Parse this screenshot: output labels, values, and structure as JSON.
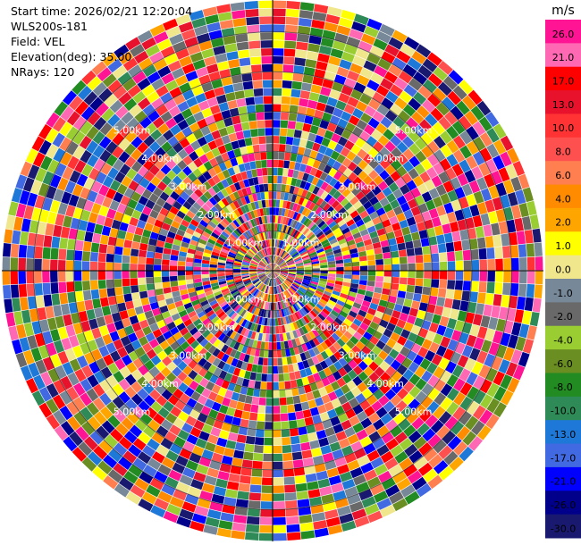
{
  "info": {
    "start_time": "Start time: 2026/02/21 12:20:04",
    "instrument": "WLS200s-181",
    "field": "Field: VEL",
    "elevation": "Elevation(deg): 35.00",
    "nrays": "NRays: 120"
  },
  "chart_data": {
    "type": "heatmap",
    "projection": "polar-ppi",
    "field": "VEL",
    "units": "m/s",
    "n_rays": 120,
    "elevation_deg": 35.0,
    "range_rings_km": [
      1.0,
      2.0,
      3.0,
      4.0,
      5.0
    ],
    "ring_labels": [
      "1.00km",
      "2.00km",
      "3.00km",
      "4.00km",
      "5.00km"
    ],
    "max_range_km": 6.8,
    "colorbar": {
      "label": "m/s",
      "ticks": [
        "26.0",
        "21.0",
        "17.0",
        "13.0",
        "10.0",
        "8.0",
        "6.0",
        "4.0",
        "2.0",
        "1.0",
        "0.0",
        "-1.0",
        "-2.0",
        "-4.0",
        "-6.0",
        "-8.0",
        "-10.0",
        "-13.0",
        "-17.0",
        "-21.0",
        "-26.0",
        "-30.0"
      ],
      "colors": [
        "#ff1493",
        "#ff69b4",
        "#ff0000",
        "#e8122c",
        "#ff3333",
        "#ff5050",
        "#ff7f50",
        "#ff8c00",
        "#ffa500",
        "#ffff00",
        "#f0e68c",
        "#778899",
        "#696969",
        "#9acd32",
        "#6b8e23",
        "#228b22",
        "#2e8b57",
        "#1e78d8",
        "#4169e1",
        "#0000ff",
        "#00008b",
        "#191970"
      ]
    },
    "grid": true
  }
}
